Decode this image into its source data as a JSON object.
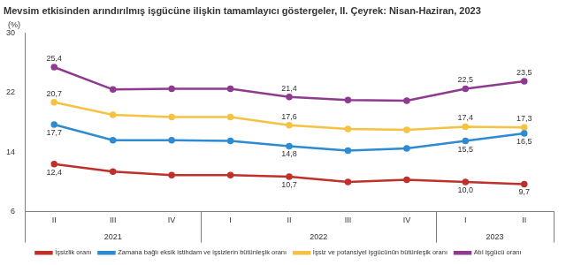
{
  "chart_data": {
    "type": "line",
    "title": "Mevsim etkisinden arındırılmış işgücüne ilişkin tamamlayıcı göstergeler, II. Çeyrek: Nisan-Haziran, 2023",
    "ylabel": "(%)",
    "categories": [
      "II",
      "III",
      "IV",
      "I",
      "II",
      "III",
      "IV",
      "I",
      "II"
    ],
    "groups": [
      {
        "label": "2021",
        "span": 3
      },
      {
        "label": "2022",
        "span": 4
      },
      {
        "label": "2023",
        "span": 2
      }
    ],
    "series": [
      {
        "name": "İşsizlik oranı",
        "color": "#c0302b",
        "marker": "circle",
        "values": [
          12.4,
          11.4,
          10.9,
          10.9,
          10.7,
          10.0,
          10.3,
          10.0,
          9.7
        ],
        "value_labels": [
          "12,4",
          null,
          null,
          null,
          "10,7",
          null,
          null,
          "10,0",
          "9,7"
        ]
      },
      {
        "name": "Zamana bağlı eksik istihdam ve işsizlerin bütünleşik oranı",
        "color": "#2e8bd1",
        "marker": "circle",
        "values": [
          17.7,
          15.6,
          15.6,
          15.5,
          14.8,
          14.2,
          14.5,
          15.5,
          16.5
        ],
        "value_labels": [
          "17,7",
          null,
          null,
          null,
          "14,8",
          null,
          null,
          "15,5",
          "16,5"
        ]
      },
      {
        "name": "İşsiz ve potansiyel işgücünün bütünleşik oranı",
        "color": "#f5c242",
        "marker": "circle",
        "values": [
          20.7,
          19.0,
          18.7,
          18.7,
          17.6,
          17.1,
          17.0,
          17.4,
          17.3
        ],
        "value_labels": [
          "20,7",
          null,
          null,
          null,
          "17,6",
          null,
          null,
          "17,4",
          "17,3"
        ]
      },
      {
        "name": "Atıl işgücü oranı",
        "color": "#8e3a8f",
        "marker": "circle",
        "values": [
          25.4,
          22.4,
          22.5,
          22.5,
          21.4,
          21.0,
          20.9,
          22.5,
          23.5
        ],
        "value_labels": [
          "25,4",
          null,
          null,
          null,
          "21,4",
          null,
          null,
          "22,5",
          "23,5"
        ]
      }
    ],
    "ylim": [
      6,
      30
    ],
    "yticks": [
      6,
      14,
      22,
      30
    ],
    "grid": false,
    "legend": "bottom"
  }
}
